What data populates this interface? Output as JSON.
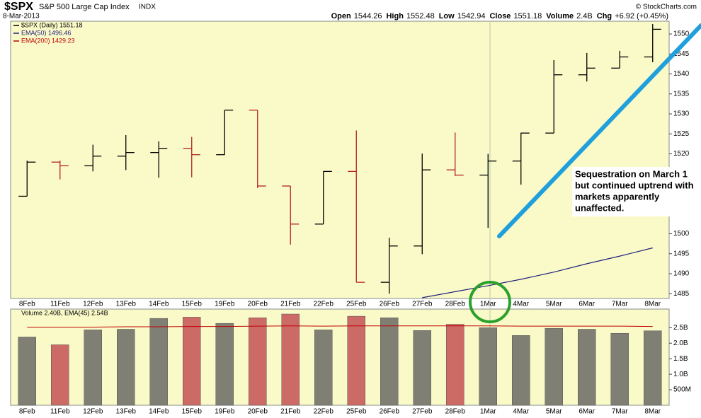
{
  "chart_data": {
    "type": "ohlc",
    "title": "$SPX",
    "subtitle": "S&P 500 Large Cap Index",
    "exchange": "INDX",
    "date": "8-Mar-2013",
    "copyright": "© StockCharts.com",
    "stats": [
      {
        "label": "Open",
        "value": 1544.26
      },
      {
        "label": "High",
        "value": 1552.48
      },
      {
        "label": "Low",
        "value": 1542.94
      },
      {
        "label": "Close",
        "value": 1551.18
      },
      {
        "label": "Volume",
        "value": "2.4B"
      },
      {
        "label": "Chg",
        "value": "+6.92 (+0.45%)"
      }
    ],
    "legend": [
      {
        "text": "$SPX (Daily) 1551.18",
        "color": "#000000"
      },
      {
        "text": "EMA(50) 1496.46",
        "color": "#1f1f7a"
      },
      {
        "text": "EMA(200) 1429.23",
        "color": "#c00000"
      }
    ],
    "categories": [
      "8Feb",
      "11Feb",
      "12Feb",
      "13Feb",
      "14Feb",
      "15Feb",
      "19Feb",
      "20Feb",
      "21Feb",
      "22Feb",
      "25Feb",
      "26Feb",
      "27Feb",
      "28Feb",
      "1Mar",
      "4Mar",
      "5Mar",
      "6Mar",
      "7Mar",
      "8Mar"
    ],
    "open": [
      1509.39,
      1517.93,
      1517.01,
      1519.43,
      1520.33,
      1521.38,
      1519.79,
      1530.94,
      1511.95,
      1502.42,
      1515.6,
      1487.85,
      1496.94,
      1515.99,
      1514.68,
      1518.2,
      1525.2,
      1539.79,
      1541.46,
      1544.26
    ],
    "high": [
      1518.31,
      1518.31,
      1522.29,
      1524.69,
      1523.14,
      1524.24,
      1530.94,
      1530.94,
      1511.95,
      1515.64,
      1525.84,
      1498.99,
      1520.08,
      1525.34,
      1519.99,
      1525.27,
      1543.47,
      1545.25,
      1545.78,
      1552.48
    ],
    "low": [
      1509.39,
      1513.61,
      1515.61,
      1515.93,
      1514.02,
      1514.14,
      1519.79,
      1511.41,
      1497.29,
      1502.42,
      1487.85,
      1485.01,
      1494.88,
      1514.46,
      1501.48,
      1512.29,
      1525.2,
      1538.11,
      1541.46,
      1542.94
    ],
    "close": [
      1517.93,
      1517.01,
      1519.43,
      1520.33,
      1521.38,
      1519.79,
      1530.94,
      1511.95,
      1502.42,
      1515.6,
      1487.85,
      1496.94,
      1515.99,
      1514.68,
      1518.2,
      1525.2,
      1539.79,
      1541.46,
      1544.26,
      1551.18
    ],
    "up_color": "#000000",
    "down_color": "#b22222",
    "ema50": {
      "color": "#1f1f7a",
      "values": [
        null,
        null,
        null,
        null,
        null,
        null,
        null,
        null,
        null,
        null,
        null,
        null,
        1484.0,
        1485.5,
        1487.0,
        1488.6,
        1490.4,
        1492.5,
        1494.4,
        1496.46
      ]
    },
    "ylim": [
      1483.8,
      1553.2
    ],
    "yticks": [
      1485,
      1490,
      1495,
      1500,
      1505,
      1510,
      1515,
      1520,
      1525,
      1530,
      1535,
      1540,
      1545,
      1550
    ],
    "volume": {
      "label": "Volume 2.40B, EMA(45) 2.54B",
      "values": [
        2.2,
        1.95,
        2.43,
        2.45,
        2.8,
        2.84,
        2.64,
        2.82,
        2.94,
        2.43,
        2.87,
        2.82,
        2.41,
        2.61,
        2.5,
        2.25,
        2.48,
        2.45,
        2.32,
        2.4
      ],
      "up_color": "#7f7f73",
      "down_color": "#cc6a66",
      "ema45": {
        "color": "#c00000",
        "values": [
          2.52,
          2.52,
          2.52,
          2.53,
          2.53,
          2.54,
          2.54,
          2.55,
          2.56,
          2.55,
          2.56,
          2.56,
          2.56,
          2.56,
          2.56,
          2.55,
          2.55,
          2.55,
          2.55,
          2.54
        ]
      },
      "ylim": [
        0,
        3.1
      ],
      "yticks": [
        {
          "value": 0.5,
          "label": "500M"
        },
        {
          "value": 1.0,
          "label": "1.0B"
        },
        {
          "value": 1.5,
          "label": "1.5B"
        },
        {
          "value": 2.0,
          "label": "2.0B"
        },
        {
          "value": 2.5,
          "label": "2.5B"
        }
      ]
    },
    "annotation": [
      "Sequestration on March 1",
      "but continued uptrend with",
      "markets apparently",
      "unaffected."
    ]
  }
}
